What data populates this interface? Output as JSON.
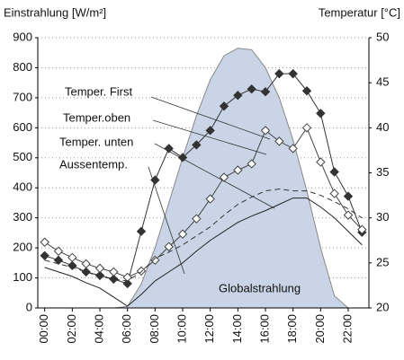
{
  "chart_data": {
    "type": "line",
    "y_label": "Einstrahlung [W/m²]",
    "y2_label": "Temperatur [°C]",
    "annotations": [
      "Temper. First",
      "Temper.oben",
      "Temper. unten",
      "Aussentemp.",
      "Globalstrahlung"
    ],
    "x": [
      0,
      1,
      2,
      3,
      4,
      5,
      6,
      7,
      8,
      9,
      10,
      11,
      12,
      13,
      14,
      15,
      16,
      17,
      18,
      19,
      20,
      21,
      22,
      23
    ],
    "xlim": [
      -0.5,
      23.5
    ],
    "xticks": [
      {
        "value": 0,
        "label": "00:00"
      },
      {
        "value": 2,
        "label": "02:00"
      },
      {
        "value": 4,
        "label": "04:00"
      },
      {
        "value": 6,
        "label": "06:00"
      },
      {
        "value": 8,
        "label": "08:00"
      },
      {
        "value": 10,
        "label": "10:00"
      },
      {
        "value": 12,
        "label": "12:00"
      },
      {
        "value": 14,
        "label": "14:00"
      },
      {
        "value": 16,
        "label": "16:00"
      },
      {
        "value": 18,
        "label": "18:00"
      },
      {
        "value": 20,
        "label": "20:00"
      },
      {
        "value": 22,
        "label": "22:00"
      }
    ],
    "ylim": [
      0,
      900
    ],
    "yticks": [
      0,
      100,
      200,
      300,
      400,
      500,
      600,
      700,
      800,
      900
    ],
    "y2lim": [
      20,
      50
    ],
    "y2ticks": [
      20,
      25,
      30,
      35,
      40,
      45,
      50
    ],
    "grid": true,
    "series": [
      {
        "name": "Globalstrahlung",
        "style": "area",
        "color": "#c9d5e6",
        "values": [
          0,
          0,
          0,
          0,
          0,
          0,
          5,
          80,
          200,
          350,
          500,
          640,
          760,
          840,
          865,
          860,
          800,
          700,
          560,
          390,
          200,
          40,
          0,
          0
        ]
      },
      {
        "name": "Temper. First",
        "axis": "y2",
        "marker": "filled",
        "color": "#333333",
        "values": [
          25.8,
          25.3,
          24.7,
          24.0,
          23.6,
          23.2,
          22.7,
          28.5,
          34.2,
          37.7,
          36.7,
          38.1,
          39.7,
          42.4,
          43.6,
          44.3,
          44.0,
          46.0,
          46.0,
          44.1,
          41.6,
          35.1,
          32.4,
          28.4
        ]
      },
      {
        "name": "Temper.oben",
        "axis": "y2",
        "marker": "hollow",
        "color": "#444444",
        "values": [
          27.3,
          26.3,
          25.6,
          24.9,
          24.4,
          24.0,
          23.4,
          24.1,
          25.3,
          26.8,
          28.2,
          29.9,
          32.1,
          34.5,
          35.3,
          36.0,
          39.7,
          38.5,
          37.7,
          40.0,
          36.2,
          32.7,
          30.3,
          28.7
        ]
      },
      {
        "name": "Temper. unten",
        "axis": "y2",
        "dash": true,
        "color": "#333333",
        "values": [
          25.3,
          24.9,
          24.5,
          24.0,
          23.5,
          23.2,
          23.0,
          24.0,
          25.5,
          26.2,
          27.0,
          28.0,
          29.0,
          30.3,
          31.5,
          32.3,
          33.0,
          33.2,
          33.0,
          33.0,
          32.5,
          31.8,
          31.0,
          30.0
        ]
      },
      {
        "name": "Aussentemp.",
        "axis": "y2",
        "color": "#222222",
        "values": [
          24.5,
          24.0,
          23.5,
          22.8,
          22.2,
          21.2,
          20.2,
          21.5,
          23.0,
          24.0,
          25.0,
          26.3,
          27.5,
          28.5,
          29.5,
          30.2,
          30.8,
          31.5,
          32.2,
          32.2,
          31.2,
          30.0,
          28.5,
          27.0
        ]
      }
    ]
  }
}
